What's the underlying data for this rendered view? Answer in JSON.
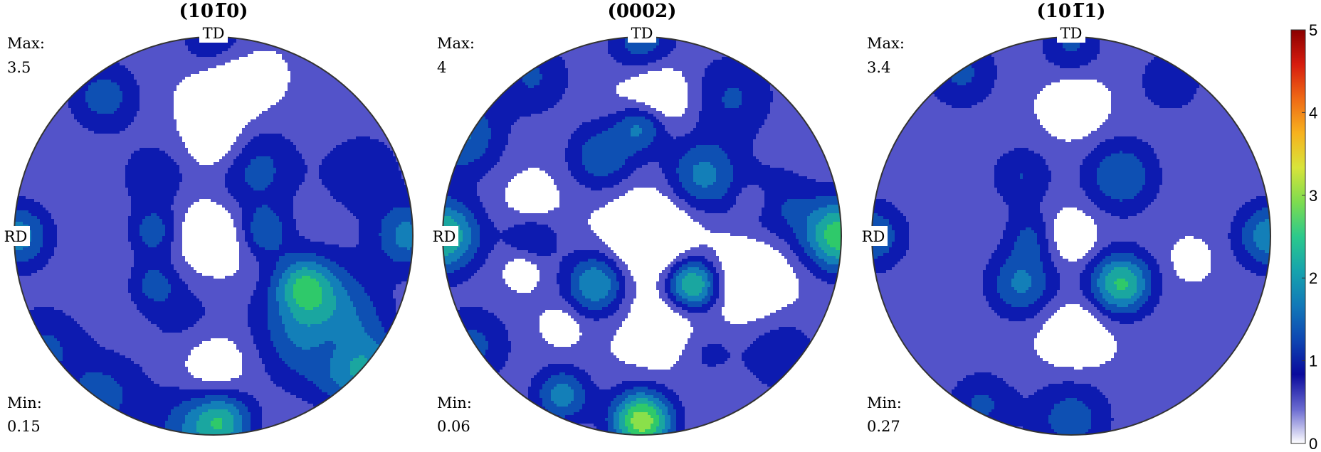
{
  "chart_data": {
    "type": "contour",
    "figure_description_visible": "pole figures",
    "colormap": [
      "#ffffff",
      "#5353c9",
      "#0d1bb0",
      "#0e50b3",
      "#137fb8",
      "#1aa6a0",
      "#2fc96a",
      "#8ae04a",
      "#e8e63a",
      "#f7a31f",
      "#e53812",
      "#8b0000"
    ],
    "contour_levels": [
      0.5,
      1,
      1.5,
      2,
      2.5,
      3,
      3.5
    ],
    "plots": [
      {
        "title": "(10̅0)",
        "title_parts": [
          "(10",
          "1̅",
          "0)"
        ],
        "max_label": "Max:",
        "max_value": "3.5",
        "min_label": "Min:",
        "min_value": "0.15",
        "top_label": "TD",
        "left_label": "RD",
        "max": 3.5,
        "min": 0.15,
        "peaks": [
          {
            "u": 0.49,
            "v": -0.49,
            "amp": 1.2,
            "s": 0.2
          },
          {
            "u": 0.75,
            "v": -0.69,
            "amp": 1.6,
            "s": 0.14
          },
          {
            "u": 0.6,
            "v": -0.38,
            "amp": 1.0,
            "s": 0.2
          },
          {
            "u": -0.14,
            "v": -0.42,
            "amp": 0.6,
            "s": 0.16
          },
          {
            "u": -0.08,
            "v": -0.97,
            "amp": 1.4,
            "s": 0.16
          },
          {
            "u": 0.05,
            "v": -0.93,
            "amp": 1.5,
            "s": 0.1
          },
          {
            "u": 0.0,
            "v": 0.97,
            "amp": 1.0,
            "s": 0.12
          },
          {
            "u": -0.98,
            "v": 0.0,
            "amp": 1.7,
            "s": 0.12
          },
          {
            "u": 0.98,
            "v": 0.0,
            "amp": 1.6,
            "s": 0.12
          },
          {
            "u": 0.45,
            "v": -0.24,
            "amp": 1.6,
            "s": 0.1
          },
          {
            "u": 0.25,
            "v": 0.02,
            "amp": 1.3,
            "s": 0.09
          },
          {
            "u": -0.3,
            "v": 0.02,
            "amp": 1.2,
            "s": 0.09
          },
          {
            "u": -0.3,
            "v": -0.24,
            "amp": 1.0,
            "s": 0.09
          },
          {
            "u": 0.2,
            "v": 0.34,
            "amp": 1.2,
            "s": 0.16
          },
          {
            "u": -0.3,
            "v": 0.3,
            "amp": 0.9,
            "s": 0.12
          },
          {
            "u": -0.55,
            "v": 0.7,
            "amp": 1.2,
            "s": 0.13
          },
          {
            "u": -0.85,
            "v": -0.55,
            "amp": 1.0,
            "s": 0.15
          },
          {
            "u": 0.75,
            "v": 0.32,
            "amp": 0.9,
            "s": 0.15
          },
          {
            "u": -0.55,
            "v": -0.8,
            "amp": 1.1,
            "s": 0.15
          }
        ],
        "holes": [
          {
            "u": 0.0,
            "v": 0.0,
            "amp": 0.9,
            "s": 0.13
          },
          {
            "u": 0.08,
            "v": 0.75,
            "amp": 1.0,
            "s": 0.13
          },
          {
            "u": 0.02,
            "v": 0.46,
            "amp": 0.9,
            "s": 0.11
          },
          {
            "u": 0.0,
            "v": -0.65,
            "amp": 0.9,
            "s": 0.12
          },
          {
            "u": 0.6,
            "v": -0.55,
            "amp": 0.8,
            "s": 0.1
          }
        ],
        "bias": 0.55
      },
      {
        "title": "(0002)",
        "title_parts": [
          "(0002)",
          "",
          ""
        ],
        "max_label": "Max:",
        "max_value": "4",
        "min_label": "Min:",
        "min_value": "0.06",
        "top_label": "TD",
        "left_label": "RD",
        "max": 4.0,
        "min": 0.06,
        "peaks": [
          {
            "u": 0.0,
            "v": -0.93,
            "amp": 3.3,
            "s": 0.11
          },
          {
            "u": -0.4,
            "v": -0.8,
            "amp": 1.7,
            "s": 0.1
          },
          {
            "u": 0.3,
            "v": -0.55,
            "amp": 1.2,
            "s": 0.12
          },
          {
            "u": 0.25,
            "v": -0.25,
            "amp": 3.2,
            "s": 0.1
          },
          {
            "u": -0.23,
            "v": -0.24,
            "amp": 2.0,
            "s": 0.11
          },
          {
            "u": -1.0,
            "v": 0.0,
            "amp": 2.6,
            "s": 0.13
          },
          {
            "u": 1.0,
            "v": 0.0,
            "amp": 2.8,
            "s": 0.13
          },
          {
            "u": 0.0,
            "v": 0.97,
            "amp": 1.3,
            "s": 0.12
          },
          {
            "u": -0.55,
            "v": 0.8,
            "amp": 1.0,
            "s": 0.14
          },
          {
            "u": -0.9,
            "v": 0.5,
            "amp": 1.5,
            "s": 0.14
          },
          {
            "u": 0.45,
            "v": 0.7,
            "amp": 1.0,
            "s": 0.16
          },
          {
            "u": -0.2,
            "v": 0.4,
            "amp": 1.4,
            "s": 0.12
          },
          {
            "u": 0.3,
            "v": 0.3,
            "amp": 1.6,
            "s": 0.13
          },
          {
            "u": 0.0,
            "v": 0.56,
            "amp": 1.7,
            "s": 0.09
          },
          {
            "u": -0.55,
            "v": 0.0,
            "amp": 0.9,
            "s": 0.1
          },
          {
            "u": 0.68,
            "v": 0.15,
            "amp": 0.9,
            "s": 0.15
          },
          {
            "u": -0.85,
            "v": -0.55,
            "amp": 1.1,
            "s": 0.14
          },
          {
            "u": 0.7,
            "v": -0.6,
            "amp": 0.9,
            "s": 0.14
          }
        ],
        "holes": [
          {
            "u": 0.07,
            "v": 0.7,
            "amp": 1.2,
            "s": 0.12
          },
          {
            "u": 0.05,
            "v": 0.0,
            "amp": 1.3,
            "s": 0.15
          },
          {
            "u": 0.2,
            "v": -0.44,
            "amp": 1.3,
            "s": 0.16
          },
          {
            "u": 0.55,
            "v": -0.2,
            "amp": 1.0,
            "s": 0.14
          },
          {
            "u": -0.55,
            "v": 0.18,
            "amp": 0.8,
            "s": 0.08
          },
          {
            "u": 0.55,
            "v": 0.18,
            "amp": 0.7,
            "s": 0.06
          },
          {
            "u": -0.4,
            "v": -0.45,
            "amp": 0.7,
            "s": 0.06
          },
          {
            "u": -0.6,
            "v": -0.17,
            "amp": 0.7,
            "s": 0.06
          }
        ],
        "bias": 0.55
      },
      {
        "title": "(10̅1)",
        "title_parts": [
          "(10",
          "1̅",
          "1)"
        ],
        "max_label": "Max:",
        "max_value": "3.4",
        "min_label": "Min:",
        "min_value": "0.27",
        "top_label": "TD",
        "left_label": "RD",
        "max": 3.4,
        "min": 0.27,
        "peaks": [
          {
            "u": 0.25,
            "v": -0.24,
            "amp": 2.5,
            "s": 0.11
          },
          {
            "u": -0.25,
            "v": -0.24,
            "amp": 1.5,
            "s": 0.12
          },
          {
            "u": -1.0,
            "v": 0.0,
            "amp": 1.4,
            "s": 0.12
          },
          {
            "u": 1.0,
            "v": 0.0,
            "amp": 1.8,
            "s": 0.12
          },
          {
            "u": 0.25,
            "v": 0.3,
            "amp": 1.4,
            "s": 0.13
          },
          {
            "u": -0.25,
            "v": 0.3,
            "amp": 0.9,
            "s": 0.11
          },
          {
            "u": -0.2,
            "v": 0.0,
            "amp": 0.9,
            "s": 0.09
          },
          {
            "u": 0.0,
            "v": -0.92,
            "amp": 1.2,
            "s": 0.14
          },
          {
            "u": -0.45,
            "v": -0.85,
            "amp": 1.0,
            "s": 0.12
          },
          {
            "u": -0.55,
            "v": 0.82,
            "amp": 1.0,
            "s": 0.13
          },
          {
            "u": 0.0,
            "v": 0.97,
            "amp": 1.0,
            "s": 0.11
          },
          {
            "u": 0.5,
            "v": 0.78,
            "amp": 0.8,
            "s": 0.12
          }
        ],
        "holes": [
          {
            "u": 0.0,
            "v": 0.0,
            "amp": 0.9,
            "s": 0.09
          },
          {
            "u": 0.02,
            "v": 0.65,
            "amp": 0.9,
            "s": 0.1
          },
          {
            "u": 0.02,
            "v": -0.5,
            "amp": 1.0,
            "s": 0.11
          },
          {
            "u": 0.6,
            "v": -0.12,
            "amp": 0.7,
            "s": 0.06
          }
        ],
        "bias": 0.6
      }
    ],
    "colorbar": {
      "ticks": [
        "0",
        "1",
        "2",
        "3",
        "4",
        "5"
      ],
      "range": [
        0,
        5
      ]
    }
  }
}
